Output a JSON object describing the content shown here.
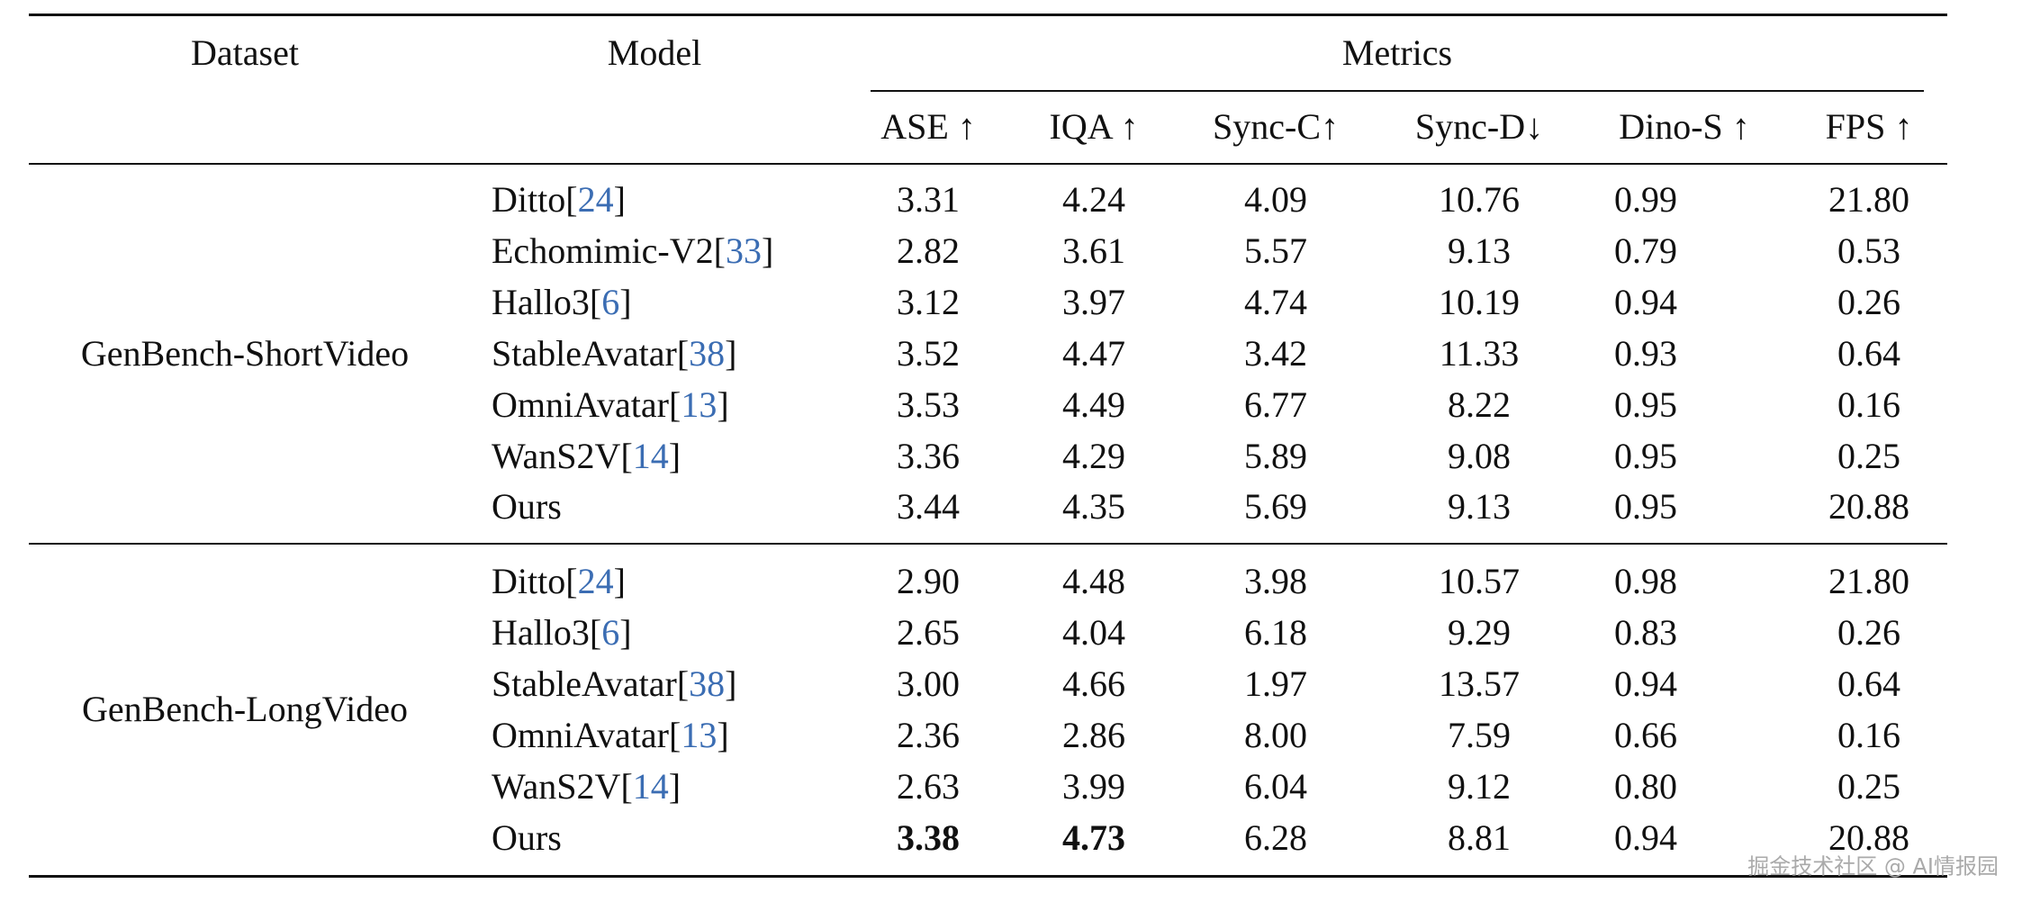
{
  "header": {
    "dataset": "Dataset",
    "model": "Model",
    "metrics": "Metrics",
    "columns": [
      "ASE ↑",
      "IQA ↑",
      "Sync-C↑",
      "Sync-D↓",
      "Dino-S ↑",
      "FPS ↑"
    ]
  },
  "groups": [
    {
      "dataset": "GenBench-ShortVideo",
      "rows": [
        {
          "model": "Ditto",
          "ref": 24,
          "values": [
            "3.31",
            "4.24",
            "4.09",
            "10.76",
            "0.99",
            "21.80"
          ]
        },
        {
          "model": "Echomimic-V2",
          "ref": 33,
          "values": [
            "2.82",
            "3.61",
            "5.57",
            "9.13",
            "0.79",
            "0.53"
          ]
        },
        {
          "model": "Hallo3",
          "ref": 6,
          "values": [
            "3.12",
            "3.97",
            "4.74",
            "10.19",
            "0.94",
            "0.26"
          ]
        },
        {
          "model": "StableAvatar",
          "ref": 38,
          "values": [
            "3.52",
            "4.47",
            "3.42",
            "11.33",
            "0.93",
            "0.64"
          ]
        },
        {
          "model": "OmniAvatar",
          "ref": 13,
          "values": [
            "3.53",
            "4.49",
            "6.77",
            "8.22",
            "0.95",
            "0.16"
          ]
        },
        {
          "model": "WanS2V",
          "ref": 14,
          "values": [
            "3.36",
            "4.29",
            "5.89",
            "9.08",
            "0.95",
            "0.25"
          ]
        },
        {
          "model": "Ours",
          "values": [
            "3.44",
            "4.35",
            "5.69",
            "9.13",
            "0.95",
            "20.88"
          ]
        }
      ]
    },
    {
      "dataset": "GenBench-LongVideo",
      "rows": [
        {
          "model": "Ditto",
          "ref": 24,
          "values": [
            "2.90",
            "4.48",
            "3.98",
            "10.57",
            "0.98",
            "21.80"
          ]
        },
        {
          "model": "Hallo3",
          "ref": 6,
          "values": [
            "2.65",
            "4.04",
            "6.18",
            "9.29",
            "0.83",
            "0.26"
          ]
        },
        {
          "model": "StableAvatar",
          "ref": 38,
          "values": [
            "3.00",
            "4.66",
            "1.97",
            "13.57",
            "0.94",
            "0.64"
          ]
        },
        {
          "model": "OmniAvatar",
          "ref": 13,
          "values": [
            "2.36",
            "2.86",
            "8.00",
            "7.59",
            "0.66",
            "0.16"
          ]
        },
        {
          "model": "WanS2V",
          "ref": 14,
          "values": [
            "2.63",
            "3.99",
            "6.04",
            "9.12",
            "0.80",
            "0.25"
          ]
        },
        {
          "model": "Ours",
          "values": [
            "3.38",
            "4.73",
            "6.28",
            "8.81",
            "0.94",
            "20.88"
          ],
          "bold": [
            0,
            1
          ]
        }
      ]
    }
  ],
  "watermark": "掘金技术社区 @ AI情报园"
}
